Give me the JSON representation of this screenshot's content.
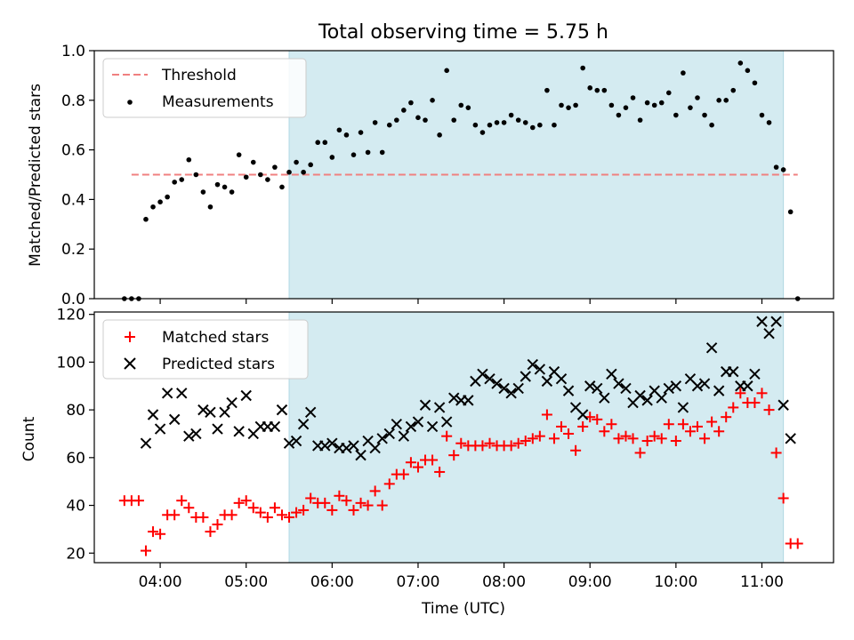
{
  "title": "Total observing time = 5.75 h",
  "colors": {
    "span": "#d4ebf1",
    "threshold": "#f08080",
    "matched": "#ff0000",
    "predicted": "#000000",
    "measurement": "#000000"
  },
  "chart_data": [
    {
      "type": "scatter",
      "title": "Total observing time = 5.75 h",
      "xlabel": "",
      "ylabel": "Matched/Predicted stars",
      "xlim": [
        "03:14",
        "11:50"
      ],
      "ylim": [
        0,
        1.0
      ],
      "yticks": [
        "0.0",
        "0.2",
        "0.4",
        "0.6",
        "0.8",
        "1.0"
      ],
      "observing_span": [
        "05:30",
        "11:15"
      ],
      "legend": {
        "position": "top-left",
        "entries": [
          "Threshold",
          "Measurements"
        ]
      },
      "threshold": {
        "name": "Threshold",
        "y": 0.5,
        "x": [
          "03:40",
          "11:25"
        ]
      },
      "series": [
        {
          "name": "Measurements",
          "x": [
            "03:35",
            "03:40",
            "03:45",
            "03:50",
            "03:55",
            "04:00",
            "04:05",
            "04:10",
            "04:15",
            "04:20",
            "04:25",
            "04:30",
            "04:35",
            "04:40",
            "04:45",
            "04:50",
            "04:55",
            "05:00",
            "05:05",
            "05:10",
            "05:15",
            "05:20",
            "05:25",
            "05:30",
            "05:35",
            "05:40",
            "05:45",
            "05:50",
            "05:55",
            "06:00",
            "06:05",
            "06:10",
            "06:15",
            "06:20",
            "06:25",
            "06:30",
            "06:35",
            "06:40",
            "06:45",
            "06:50",
            "06:55",
            "07:00",
            "07:05",
            "07:10",
            "07:15",
            "07:20",
            "07:25",
            "07:30",
            "07:35",
            "07:40",
            "07:45",
            "07:50",
            "07:55",
            "08:00",
            "08:05",
            "08:10",
            "08:15",
            "08:20",
            "08:25",
            "08:30",
            "08:35",
            "08:40",
            "08:45",
            "08:50",
            "08:55",
            "09:00",
            "09:05",
            "09:10",
            "09:15",
            "09:20",
            "09:25",
            "09:30",
            "09:35",
            "09:40",
            "09:45",
            "09:50",
            "09:55",
            "10:00",
            "10:05",
            "10:10",
            "10:15",
            "10:20",
            "10:25",
            "10:30",
            "10:35",
            "10:40",
            "10:45",
            "10:50",
            "10:55",
            "11:00",
            "11:05",
            "11:10",
            "11:15",
            "11:20",
            "11:25"
          ],
          "y": [
            0,
            0,
            0,
            0.32,
            0.37,
            0.39,
            0.41,
            0.47,
            0.48,
            0.56,
            0.5,
            0.43,
            0.37,
            0.46,
            0.45,
            0.43,
            0.58,
            0.49,
            0.55,
            0.5,
            0.48,
            0.53,
            0.45,
            0.51,
            0.55,
            0.51,
            0.54,
            0.63,
            0.63,
            0.57,
            0.68,
            0.66,
            0.58,
            0.67,
            0.59,
            0.71,
            0.59,
            0.7,
            0.72,
            0.76,
            0.79,
            0.73,
            0.72,
            0.8,
            0.66,
            0.92,
            0.72,
            0.78,
            0.77,
            0.7,
            0.67,
            0.7,
            0.71,
            0.71,
            0.74,
            0.72,
            0.71,
            0.69,
            0.7,
            0.84,
            0.7,
            0.78,
            0.77,
            0.78,
            0.93,
            0.85,
            0.84,
            0.84,
            0.78,
            0.74,
            0.77,
            0.81,
            0.72,
            0.79,
            0.78,
            0.79,
            0.83,
            0.74,
            0.91,
            0.77,
            0.81,
            0.74,
            0.7,
            0.8,
            0.8,
            0.84,
            0.95,
            0.92,
            0.87,
            0.74,
            0.71,
            0.53,
            0.52,
            0.35,
            0
          ]
        }
      ]
    },
    {
      "type": "scatter",
      "title": "",
      "xlabel": "Time (UTC)",
      "ylabel": "Count",
      "xlim": [
        "03:14",
        "11:50"
      ],
      "ylim": [
        16,
        121
      ],
      "xticks": [
        "04:00",
        "05:00",
        "06:00",
        "07:00",
        "08:00",
        "09:00",
        "10:00",
        "11:00"
      ],
      "yticks": [
        "20",
        "40",
        "60",
        "80",
        "100",
        "120"
      ],
      "observing_span": [
        "05:30",
        "11:15"
      ],
      "legend": {
        "position": "top-left",
        "entries": [
          "Matched stars",
          "Predicted stars"
        ]
      },
      "series": [
        {
          "name": "Matched stars",
          "marker": "plus",
          "x": [
            "03:35",
            "03:40",
            "03:45",
            "03:50",
            "03:55",
            "04:00",
            "04:05",
            "04:10",
            "04:15",
            "04:20",
            "04:25",
            "04:30",
            "04:35",
            "04:40",
            "04:45",
            "04:50",
            "04:55",
            "05:00",
            "05:05",
            "05:10",
            "05:15",
            "05:20",
            "05:25",
            "05:30",
            "05:35",
            "05:40",
            "05:45",
            "05:50",
            "05:55",
            "06:00",
            "06:05",
            "06:10",
            "06:15",
            "06:20",
            "06:25",
            "06:30",
            "06:35",
            "06:40",
            "06:45",
            "06:50",
            "06:55",
            "07:00",
            "07:05",
            "07:10",
            "07:15",
            "07:20",
            "07:25",
            "07:30",
            "07:35",
            "07:40",
            "07:45",
            "07:50",
            "07:55",
            "08:00",
            "08:05",
            "08:10",
            "08:15",
            "08:20",
            "08:25",
            "08:30",
            "08:35",
            "08:40",
            "08:45",
            "08:50",
            "08:55",
            "09:00",
            "09:05",
            "09:10",
            "09:15",
            "09:20",
            "09:25",
            "09:30",
            "09:35",
            "09:40",
            "09:45",
            "09:50",
            "09:55",
            "10:00",
            "10:05",
            "10:10",
            "10:15",
            "10:20",
            "10:25",
            "10:30",
            "10:35",
            "10:40",
            "10:45",
            "10:50",
            "10:55",
            "11:00",
            "11:05",
            "11:10",
            "11:15",
            "11:20",
            "11:25"
          ],
          "y": [
            42,
            42,
            42,
            21,
            29,
            28,
            36,
            36,
            42,
            39,
            35,
            35,
            29,
            32,
            36,
            36,
            41,
            42,
            39,
            37,
            35,
            39,
            36,
            35,
            37,
            38,
            43,
            41,
            41,
            38,
            44,
            42,
            38,
            41,
            40,
            46,
            40,
            49,
            53,
            53,
            58,
            56,
            59,
            59,
            54,
            69,
            61,
            66,
            65,
            65,
            65,
            66,
            65,
            65,
            65,
            66,
            67,
            68,
            69,
            78,
            68,
            73,
            70,
            63,
            73,
            77,
            76,
            71,
            74,
            68,
            69,
            68,
            62,
            67,
            69,
            68,
            74,
            67,
            74,
            71,
            73,
            68,
            75,
            71,
            77,
            81,
            87,
            83,
            83,
            87,
            80,
            62,
            43,
            24,
            24
          ]
        },
        {
          "name": "Predicted stars",
          "marker": "x",
          "x": [
            "03:50",
            "03:55",
            "04:00",
            "04:05",
            "04:10",
            "04:15",
            "04:20",
            "04:25",
            "04:30",
            "04:35",
            "04:40",
            "04:45",
            "04:50",
            "04:55",
            "05:00",
            "05:05",
            "05:10",
            "05:15",
            "05:20",
            "05:25",
            "05:30",
            "05:35",
            "05:40",
            "05:45",
            "05:50",
            "05:55",
            "06:00",
            "06:05",
            "06:10",
            "06:15",
            "06:20",
            "06:25",
            "06:30",
            "06:35",
            "06:40",
            "06:45",
            "06:50",
            "06:55",
            "07:00",
            "07:05",
            "07:10",
            "07:15",
            "07:20",
            "07:25",
            "07:30",
            "07:35",
            "07:40",
            "07:45",
            "07:50",
            "07:55",
            "08:00",
            "08:05",
            "08:10",
            "08:15",
            "08:20",
            "08:25",
            "08:30",
            "08:35",
            "08:40",
            "08:45",
            "08:50",
            "08:55",
            "09:00",
            "09:05",
            "09:10",
            "09:15",
            "09:20",
            "09:25",
            "09:30",
            "09:35",
            "09:40",
            "09:45",
            "09:50",
            "09:55",
            "10:00",
            "10:05",
            "10:10",
            "10:15",
            "10:20",
            "10:25",
            "10:30",
            "10:35",
            "10:40",
            "10:45",
            "10:50",
            "10:55",
            "11:00",
            "11:05",
            "11:10",
            "11:15",
            "11:20"
          ],
          "y": [
            66,
            78,
            72,
            87,
            76,
            87,
            69,
            70,
            80,
            79,
            72,
            79,
            83,
            71,
            86,
            70,
            73,
            73,
            73,
            80,
            66,
            67,
            74,
            79,
            65,
            65,
            66,
            64,
            64,
            65,
            61,
            67,
            64,
            68,
            70,
            74,
            69,
            73,
            75,
            82,
            73,
            81,
            75,
            85,
            84,
            84,
            92,
            95,
            93,
            91,
            89,
            87,
            89,
            94,
            99,
            97,
            92,
            96,
            93,
            88,
            81,
            78,
            90,
            89,
            85,
            95,
            91,
            89,
            83,
            86,
            84,
            88,
            85,
            89,
            90,
            81,
            93,
            90,
            91,
            106,
            88,
            96,
            96,
            90,
            90,
            95,
            117,
            112,
            117,
            82,
            68
          ]
        }
      ]
    }
  ]
}
